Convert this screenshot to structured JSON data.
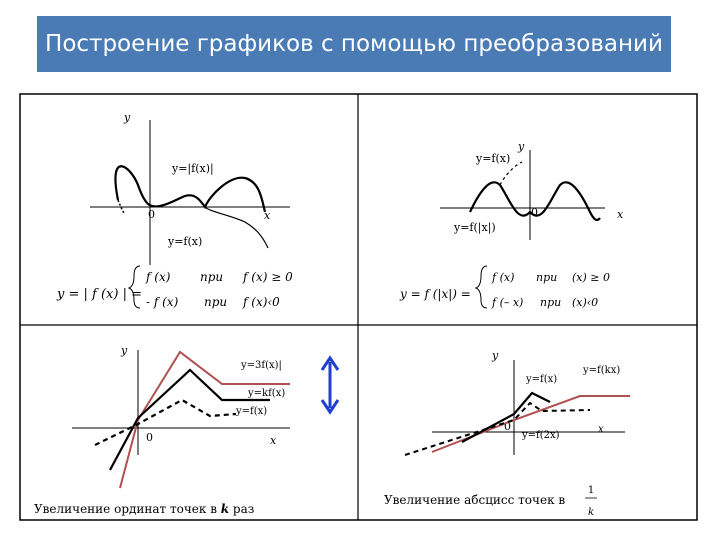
{
  "title": "Построение графиков с помощью преобразований",
  "panels": {
    "abs_f": {
      "axis_y": "y",
      "axis_x": "x",
      "origin": "0",
      "label_abs": "y=|f(x)|",
      "label_f": "y=f(x)",
      "formula_lhs": "y = | f (x) | =",
      "case1_expr": "f (x)",
      "case1_word": "при",
      "case1_cond": "f (x) ≥ 0",
      "case2_expr": "- f (x)",
      "case2_word": "при",
      "case2_cond": "f (x)‹0"
    },
    "f_abs_x": {
      "axis_y": "y",
      "axis_x": "x",
      "origin": "0",
      "label_f": "y=f(x)",
      "label_fabs": "y=f(|x|)",
      "formula_lhs": "y = f (|x|) =",
      "case1_expr": "f (x)",
      "case1_word": "при",
      "case1_cond": "(x) ≥ 0",
      "case2_expr": "f (– x)",
      "case2_word": "при",
      "case2_cond": "(x)‹0"
    },
    "k_fx": {
      "axis_y": "y",
      "axis_x": "x",
      "origin": "0",
      "label_3f": "y=3f(x)|",
      "label_kf": "y=kf(x)",
      "label_f": "y=f(x)",
      "caption_prefix": "Увеличение ординат точек в ",
      "caption_k": "k",
      "caption_suffix": " раз"
    },
    "f_kx": {
      "axis_y": "y",
      "axis_x": "x",
      "origin": "0",
      "label_f": "y=f(x)",
      "label_fkx": "y=f(kx)",
      "label_f2x": "y=f(2x)",
      "caption": "Увеличение абсцисс точек в",
      "fraction_num": "1",
      "fraction_den": "k"
    }
  },
  "colors": {
    "title_bg": "#4a7bb5",
    "curve_red": "#b05050",
    "arrow_blue": "#1f3fd0"
  }
}
